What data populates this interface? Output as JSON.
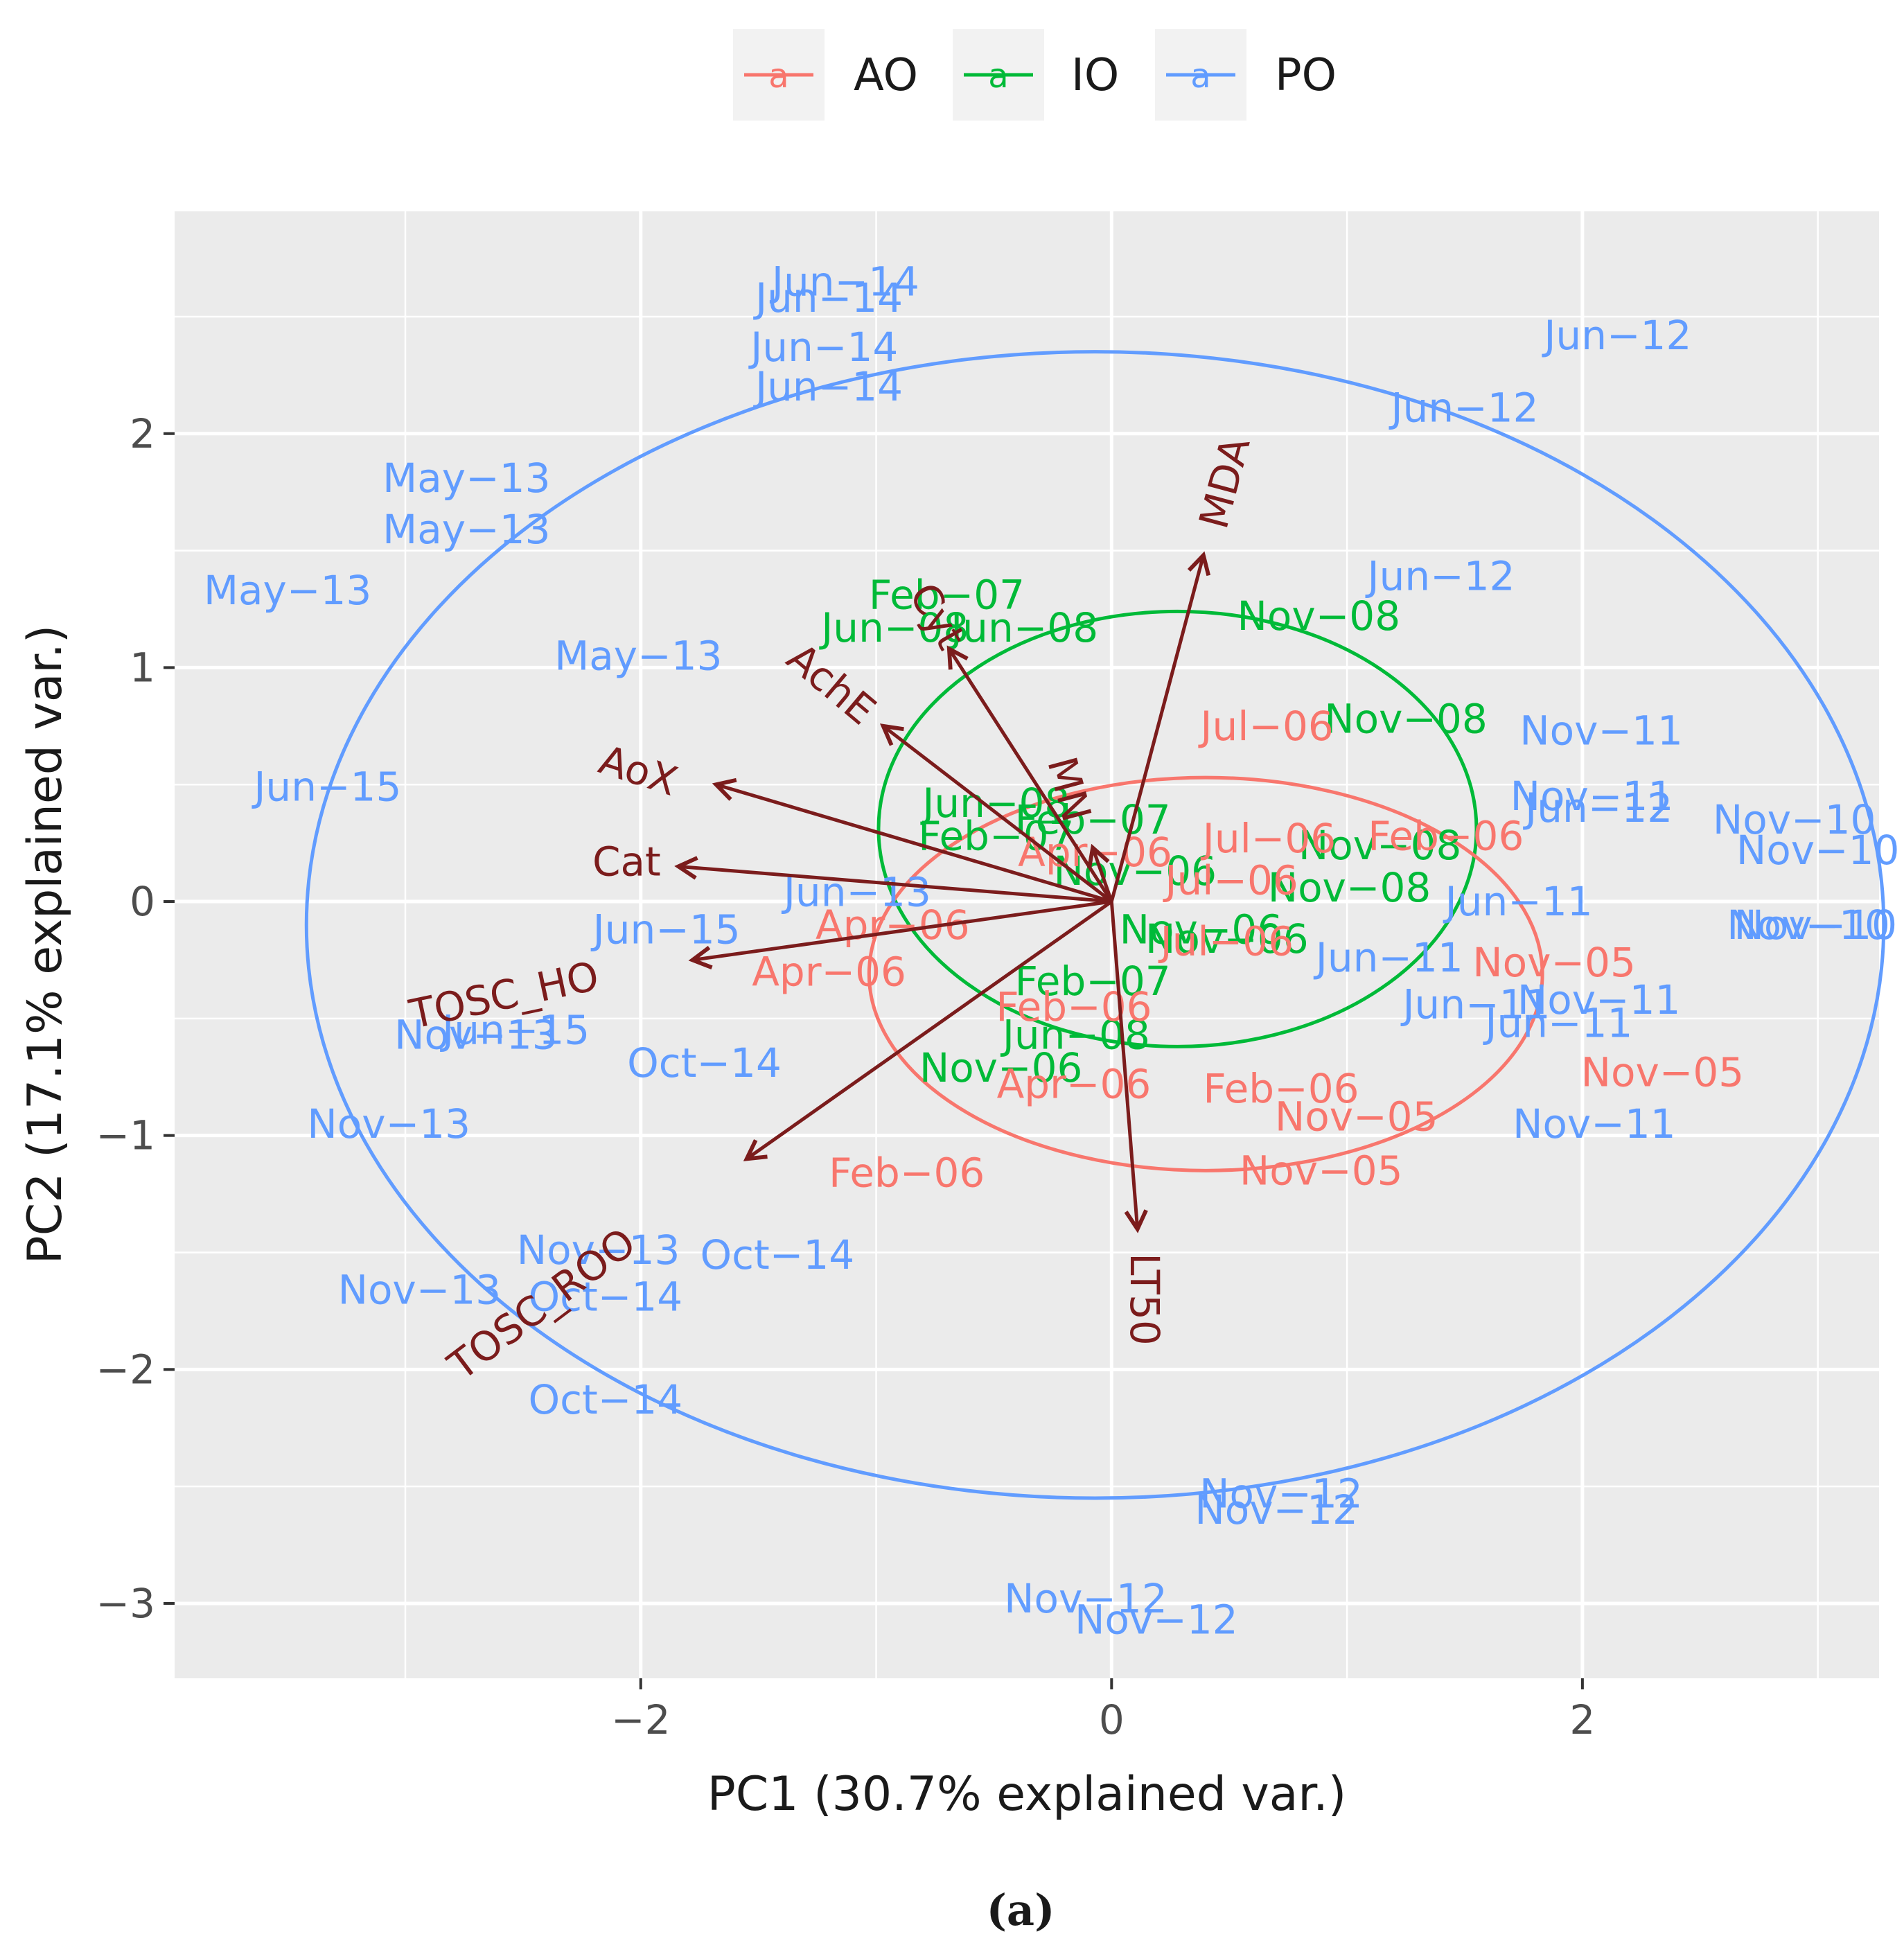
{
  "chart_data": {
    "type": "scatter",
    "subtype": "pca-biplot",
    "xlabel": "PC1 (30.7% explained var.)",
    "ylabel": "PC2 (17.1% explained var.)",
    "caption": "(a)",
    "xlim": [
      -3.98,
      3.26
    ],
    "ylim": [
      -3.32,
      2.95
    ],
    "xticks": [
      -2,
      0,
      2
    ],
    "xtick_labels": [
      "−2",
      "0",
      "2"
    ],
    "yticks": [
      -3,
      -2,
      -1,
      0,
      1,
      2
    ],
    "ytick_labels": [
      "−3",
      "−2",
      "−1",
      "0",
      "1",
      "2"
    ],
    "legend": {
      "position": "top",
      "entries": [
        {
          "key": "AO",
          "label": "AO",
          "glyph": "a",
          "color": "#F8766D"
        },
        {
          "key": "IO",
          "label": "IO",
          "glyph": "a",
          "color": "#00BA38"
        },
        {
          "key": "PO",
          "label": "PO",
          "glyph": "a",
          "color": "#619CFF"
        }
      ]
    },
    "colors": {
      "AO": "#F8766D",
      "IO": "#00BA38",
      "PO": "#619CFF",
      "arrow": "#7B1C1C",
      "panel": "#EBEBEB",
      "grid": "#FFFFFF",
      "axis_text": "#4D4D4D"
    },
    "ellipses": [
      {
        "group": "PO",
        "cx": -0.07,
        "cy": -0.1,
        "rx": 3.35,
        "ry": 2.45
      },
      {
        "group": "IO",
        "cx": 0.28,
        "cy": 0.31,
        "rx": 1.27,
        "ry": 0.93
      },
      {
        "group": "AO",
        "cx": 0.4,
        "cy": -0.31,
        "rx": 1.43,
        "ry": 0.84
      }
    ],
    "loadings": [
      {
        "label": "MDA",
        "x": 0.39,
        "y": 1.48,
        "lx": 0.48,
        "ly": 1.79,
        "rot": -75
      },
      {
        "label": "Cyt",
        "x": -0.69,
        "y": 1.08,
        "lx": -0.74,
        "ly": 1.22,
        "rot": 60
      },
      {
        "label": "AchE",
        "x": -0.97,
        "y": 0.75,
        "lx": -1.19,
        "ly": 0.93,
        "rot": 40
      },
      {
        "label": "AoX",
        "x": -1.68,
        "y": 0.5,
        "lx": -2.01,
        "ly": 0.56,
        "rot": 18
      },
      {
        "label": "Cat",
        "x": -1.84,
        "y": 0.15,
        "lx": -2.06,
        "ly": 0.17,
        "rot": 0
      },
      {
        "label": "TOSC_HO",
        "x": -1.78,
        "y": -0.25,
        "lx": -2.58,
        "ly": -0.4,
        "rot": -12
      },
      {
        "label": "TOSC_ROO",
        "x": -1.55,
        "y": -1.1,
        "lx": -2.42,
        "ly": -1.72,
        "rot": -37
      },
      {
        "label": "LT50",
        "x": 0.11,
        "y": -1.4,
        "lx": 0.14,
        "ly": -1.7,
        "rot": 90
      },
      {
        "label": "MN",
        "x": -0.08,
        "y": 0.23,
        "lx": -0.18,
        "ly": 0.48,
        "rot": 75
      }
    ],
    "points": [
      {
        "label": "Jun−14",
        "group": "PO",
        "x": -1.13,
        "y": 2.65
      },
      {
        "label": "Jun−14",
        "group": "PO",
        "x": -1.2,
        "y": 2.58
      },
      {
        "label": "Jun−14",
        "group": "PO",
        "x": -1.22,
        "y": 2.37
      },
      {
        "label": "Jun−14",
        "group": "PO",
        "x": -1.2,
        "y": 2.2
      },
      {
        "label": "Jun−12",
        "group": "PO",
        "x": 2.15,
        "y": 2.42
      },
      {
        "label": "Jun−12",
        "group": "PO",
        "x": 1.5,
        "y": 2.11
      },
      {
        "label": "Jun−12",
        "group": "PO",
        "x": 1.4,
        "y": 1.39
      },
      {
        "label": "Jun−12",
        "group": "PO",
        "x": 2.07,
        "y": 0.4
      },
      {
        "label": "May−13",
        "group": "PO",
        "x": -2.74,
        "y": 1.81
      },
      {
        "label": "May−13",
        "group": "PO",
        "x": -2.74,
        "y": 1.59
      },
      {
        "label": "May−13",
        "group": "PO",
        "x": -3.5,
        "y": 1.33
      },
      {
        "label": "May−13",
        "group": "PO",
        "x": -2.01,
        "y": 1.05
      },
      {
        "label": "Jun−15",
        "group": "PO",
        "x": -3.33,
        "y": 0.49
      },
      {
        "label": "Jun−15",
        "group": "PO",
        "x": -1.89,
        "y": -0.12
      },
      {
        "label": "Jun−15",
        "group": "PO",
        "x": -2.53,
        "y": -0.55
      },
      {
        "label": "Jun−13",
        "group": "PO",
        "x": -1.08,
        "y": 0.04
      },
      {
        "label": "Nov−13",
        "group": "PO",
        "x": -2.7,
        "y": -0.57
      },
      {
        "label": "Nov−13",
        "group": "PO",
        "x": -3.07,
        "y": -0.95
      },
      {
        "label": "Nov−13",
        "group": "PO",
        "x": -2.18,
        "y": -1.49
      },
      {
        "label": "Nov−13",
        "group": "PO",
        "x": -2.94,
        "y": -1.66
      },
      {
        "label": "Oct−14",
        "group": "PO",
        "x": -1.73,
        "y": -0.69
      },
      {
        "label": "Oct−14",
        "group": "PO",
        "x": -1.42,
        "y": -1.51
      },
      {
        "label": "Oct−14",
        "group": "PO",
        "x": -2.15,
        "y": -1.69
      },
      {
        "label": "Oct−14",
        "group": "PO",
        "x": -2.15,
        "y": -2.13
      },
      {
        "label": "Nov−11",
        "group": "PO",
        "x": 2.08,
        "y": 0.73
      },
      {
        "label": "Nov−11",
        "group": "PO",
        "x": 2.04,
        "y": 0.45
      },
      {
        "label": "Nov−11",
        "group": "PO",
        "x": 2.07,
        "y": -0.42
      },
      {
        "label": "Nov−11",
        "group": "PO",
        "x": 2.05,
        "y": -0.95
      },
      {
        "label": "Jun−11",
        "group": "PO",
        "x": 1.73,
        "y": 0.0
      },
      {
        "label": "Jun−11",
        "group": "PO",
        "x": 1.18,
        "y": -0.24
      },
      {
        "label": "Jun−11",
        "group": "PO",
        "x": 1.55,
        "y": -0.44
      },
      {
        "label": "Jun−11",
        "group": "PO",
        "x": 1.9,
        "y": -0.52
      },
      {
        "label": "Nov−10",
        "group": "PO",
        "x": 2.9,
        "y": 0.35
      },
      {
        "label": "Nov−10",
        "group": "PO",
        "x": 3.0,
        "y": 0.22
      },
      {
        "label": "Nov−10",
        "group": "PO",
        "x": 2.96,
        "y": -0.1
      },
      {
        "label": "Nov−10",
        "group": "PO",
        "x": 2.99,
        "y": -0.1
      },
      {
        "label": "Nov−12",
        "group": "PO",
        "x": 0.72,
        "y": -2.53
      },
      {
        "label": "Nov−12",
        "group": "PO",
        "x": 0.7,
        "y": -2.6
      },
      {
        "label": "Nov−12",
        "group": "PO",
        "x": -0.11,
        "y": -2.98
      },
      {
        "label": "Nov−12",
        "group": "PO",
        "x": 0.19,
        "y": -3.07
      },
      {
        "label": "Feb−07",
        "group": "IO",
        "x": -0.7,
        "y": 1.31
      },
      {
        "label": "Jun−08",
        "group": "IO",
        "x": -0.92,
        "y": 1.17
      },
      {
        "label": "Jun−08",
        "group": "IO",
        "x": -0.37,
        "y": 1.17
      },
      {
        "label": "Jun−08",
        "group": "IO",
        "x": -0.49,
        "y": 0.42
      },
      {
        "label": "Jun−08",
        "group": "IO",
        "x": -0.15,
        "y": -0.57
      },
      {
        "label": "Nov−08",
        "group": "IO",
        "x": 0.88,
        "y": 1.22
      },
      {
        "label": "Nov−08",
        "group": "IO",
        "x": 1.25,
        "y": 0.78
      },
      {
        "label": "Nov−08",
        "group": "IO",
        "x": 1.14,
        "y": 0.24
      },
      {
        "label": "Nov−08",
        "group": "IO",
        "x": 1.01,
        "y": 0.06
      },
      {
        "label": "Feb−07",
        "group": "IO",
        "x": -0.08,
        "y": 0.35
      },
      {
        "label": "Feb−07",
        "group": "IO",
        "x": -0.49,
        "y": 0.28
      },
      {
        "label": "Feb−07",
        "group": "IO",
        "x": -0.08,
        "y": -0.34
      },
      {
        "label": "Nov−06",
        "group": "IO",
        "x": 0.1,
        "y": 0.13
      },
      {
        "label": "Nov−06",
        "group": "IO",
        "x": 0.38,
        "y": -0.12
      },
      {
        "label": "Nov−06",
        "group": "IO",
        "x": 0.49,
        "y": -0.16
      },
      {
        "label": "Nov−06",
        "group": "IO",
        "x": -0.47,
        "y": -0.71
      },
      {
        "label": "Jul−06",
        "group": "AO",
        "x": 0.66,
        "y": 0.75
      },
      {
        "label": "Jul−06",
        "group": "AO",
        "x": 0.67,
        "y": 0.27
      },
      {
        "label": "Jul−06",
        "group": "AO",
        "x": 0.51,
        "y": 0.09
      },
      {
        "label": "Jul−06",
        "group": "AO",
        "x": 0.49,
        "y": -0.17
      },
      {
        "label": "Feb−06",
        "group": "AO",
        "x": 1.42,
        "y": 0.28
      },
      {
        "label": "Feb−06",
        "group": "AO",
        "x": -0.16,
        "y": -0.45
      },
      {
        "label": "Feb−06",
        "group": "AO",
        "x": 0.72,
        "y": -0.8
      },
      {
        "label": "Feb−06",
        "group": "AO",
        "x": -0.87,
        "y": -1.16
      },
      {
        "label": "Apr−06",
        "group": "AO",
        "x": -0.07,
        "y": 0.21
      },
      {
        "label": "Apr−06",
        "group": "AO",
        "x": -0.93,
        "y": -0.1
      },
      {
        "label": "Apr−06",
        "group": "AO",
        "x": -1.2,
        "y": -0.3
      },
      {
        "label": "Apr−06",
        "group": "AO",
        "x": -0.16,
        "y": -0.78
      },
      {
        "label": "Nov−05",
        "group": "AO",
        "x": 1.88,
        "y": -0.26
      },
      {
        "label": "Nov−05",
        "group": "AO",
        "x": 2.34,
        "y": -0.73
      },
      {
        "label": "Nov−05",
        "group": "AO",
        "x": 1.04,
        "y": -0.92
      },
      {
        "label": "Nov−05",
        "group": "AO",
        "x": 0.89,
        "y": -1.15
      }
    ]
  }
}
